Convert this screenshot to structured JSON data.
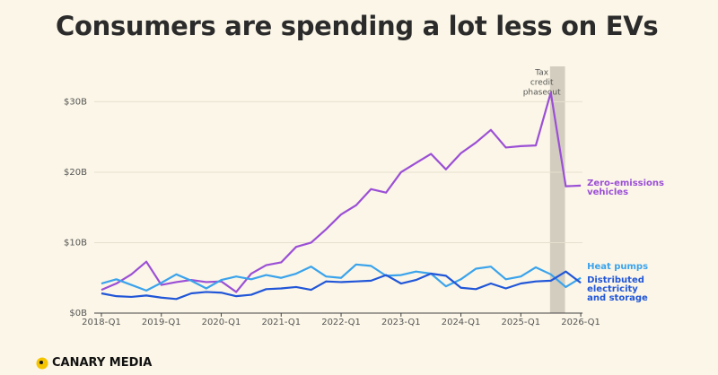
{
  "chart_data": {
    "type": "line",
    "title": "Consumers are spending a lot less on EVs",
    "categories": [
      "2018-Q1",
      null,
      null,
      null,
      "2019-Q1",
      null,
      null,
      null,
      "2020-Q1",
      null,
      null,
      null,
      "2021-Q1",
      null,
      null,
      null,
      "2022-Q1",
      null,
      null,
      null,
      "2023-Q1",
      null,
      null,
      null,
      "2024-Q1",
      null,
      null,
      null,
      "2025-Q1",
      null,
      null,
      null,
      "2026-Q1"
    ],
    "series": [
      {
        "name": "Zero-emissions vehicles",
        "color": "#9b4fd6",
        "values": [
          3.3,
          4.2,
          5.5,
          7.3,
          4.0,
          4.4,
          4.7,
          4.4,
          4.5,
          3.0,
          5.6,
          6.8,
          7.2,
          9.4,
          10.0,
          11.9,
          14.0,
          15.3,
          17.6,
          17.1,
          20.0,
          21.3,
          22.6,
          20.4,
          22.7,
          24.2,
          26.0,
          23.5,
          23.7,
          23.8,
          31.3,
          18.0,
          18.1
        ]
      },
      {
        "name": "Heat pumps",
        "color": "#3aa3ec",
        "values": [
          4.2,
          4.8,
          4.0,
          3.2,
          4.3,
          5.5,
          4.6,
          3.5,
          4.7,
          5.2,
          4.8,
          5.4,
          5.0,
          5.6,
          6.6,
          5.2,
          5.0,
          6.9,
          6.7,
          5.3,
          5.4,
          5.9,
          5.6,
          3.8,
          4.8,
          6.3,
          6.6,
          4.8,
          5.2,
          6.5,
          5.5,
          3.7,
          5.0
        ]
      },
      {
        "name": "Distributed electricity and storage",
        "color": "#2156d8",
        "values": [
          2.8,
          2.4,
          2.3,
          2.5,
          2.2,
          2.0,
          2.8,
          3.0,
          2.9,
          2.4,
          2.6,
          3.4,
          3.5,
          3.7,
          3.3,
          4.5,
          4.4,
          4.5,
          4.6,
          5.4,
          4.2,
          4.7,
          5.6,
          5.3,
          3.6,
          3.4,
          4.2,
          3.5,
          4.2,
          4.5,
          4.6,
          5.9,
          4.3
        ]
      }
    ],
    "ylim": [
      0,
      34
    ],
    "yticks": [
      {
        "value": 0,
        "label": "$0B"
      },
      {
        "value": 10,
        "label": "$10B"
      },
      {
        "value": 20,
        "label": "$20B"
      },
      {
        "value": 30,
        "label": "$30B"
      }
    ],
    "grid": true,
    "annotation": [
      "Tax",
      "credit",
      "phaseout"
    ],
    "source": "CANARY MEDIA"
  }
}
